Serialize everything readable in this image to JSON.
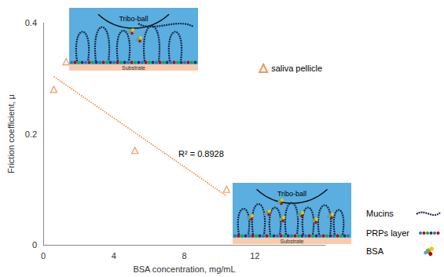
{
  "chart_data": {
    "type": "scatter",
    "x_label": "BSA concentration, mg/mL",
    "y_label": "Friction coefficient, μ",
    "series": [
      {
        "name": "saliva pellicle",
        "color": "#ed7d31",
        "marker": "triangle",
        "x": [
          0.6,
          1.3,
          5.2,
          10.4
        ],
        "values": [
          0.28,
          0.33,
          0.17,
          0.1
        ]
      }
    ],
    "trendline": {
      "color": "#ed7d31",
      "line_style": "dotted",
      "x": [
        0.6,
        10.4
      ],
      "values": [
        0.303,
        0.088
      ]
    },
    "annotations": [
      "R² = 0.8928"
    ],
    "xlim": [
      0,
      16
    ],
    "xticks": [
      0,
      4,
      8,
      12
    ],
    "ylim": [
      0,
      0.4
    ],
    "yticks": [
      0,
      0.2,
      0.4
    ],
    "grid": false,
    "legend": "top-right",
    "schematic": {
      "ball": "Tribo-ball",
      "substrate": "Substrate",
      "key": [
        "Mucins",
        "PRPs layer",
        "BSA"
      ]
    }
  }
}
